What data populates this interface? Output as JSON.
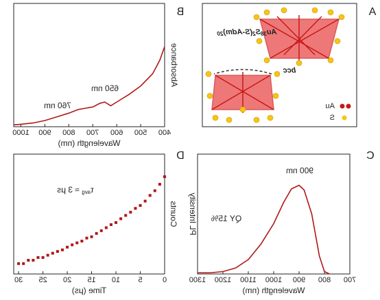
{
  "panel_a": {
    "label": "A",
    "formula_parts": [
      "Au",
      "38",
      "S",
      "2",
      "(S-Adm)",
      "20"
    ],
    "structure": "bcc",
    "legend": [
      "Au",
      "S"
    ]
  },
  "chart_data": [
    {
      "type": "line",
      "panel": "B",
      "x_label": "Wavelength (nm)",
      "y_label": "Absorbance",
      "x": [
        400,
        420,
        450,
        500,
        550,
        600,
        625,
        650,
        670,
        700,
        730,
        760,
        800,
        850,
        900,
        950,
        1000,
        1030
      ],
      "series": [
        {
          "name": "Absorbance",
          "color": "#b01818",
          "values": [
            0.65,
            0.54,
            0.43,
            0.33,
            0.26,
            0.2,
            0.17,
            0.2,
            0.19,
            0.16,
            0.15,
            0.14,
            0.11,
            0.08,
            0.05,
            0.03,
            0.02,
            0.015
          ]
        }
      ],
      "xlim": [
        400,
        1030
      ],
      "ylim": [
        0,
        1
      ],
      "xticks": [
        400,
        500,
        600,
        700,
        800,
        900,
        1000
      ],
      "annotations": [
        "650 nm",
        "760 nm"
      ]
    },
    {
      "type": "line",
      "panel": "C",
      "x_label": "Wavelength (nm)",
      "y_label": "PL Intensity",
      "x": [
        780,
        800,
        820,
        850,
        880,
        900,
        930,
        960,
        1000,
        1050,
        1100,
        1150,
        1200,
        1250,
        1300
      ],
      "series": [
        {
          "name": "PL",
          "color": "#b01818",
          "values": [
            0,
            0.02,
            0.15,
            0.5,
            0.7,
            0.74,
            0.71,
            0.6,
            0.42,
            0.25,
            0.12,
            0.05,
            0.02,
            0.01,
            0.01
          ]
        }
      ],
      "xlim": [
        700,
        1300
      ],
      "ylim": [
        0,
        1
      ],
      "xticks": [
        700,
        800,
        900,
        1000,
        1100,
        1200,
        1300
      ],
      "annotations": [
        "900 nm",
        "QY 15%"
      ]
    },
    {
      "type": "scatter",
      "panel": "D",
      "x_label": "Time (μs)",
      "y_label": "Counts",
      "log_scale": true,
      "x": [
        0,
        1,
        2,
        3,
        4,
        5,
        6,
        7,
        8,
        9,
        10,
        11,
        12,
        13,
        14,
        15,
        16,
        17,
        18,
        19,
        20,
        21,
        22,
        23,
        24,
        25,
        26,
        27,
        28,
        29,
        30
      ],
      "series": [
        {
          "name": "Counts",
          "color": "#b01818",
          "values": [
            665,
            400,
            260,
            190,
            130,
            97,
            80,
            62,
            50,
            40,
            31,
            27,
            22,
            18,
            15,
            12,
            11,
            9,
            8,
            7,
            6,
            5,
            4.5,
            4,
            3.5,
            3,
            3,
            2.5,
            2.5,
            2,
            2
          ]
        }
      ],
      "xlim": [
        0,
        31
      ],
      "ylim": [
        1,
        3000
      ],
      "xticks": [
        0,
        5,
        10,
        15,
        20,
        25,
        30
      ],
      "annotations": [
        [
          "τ",
          "avg",
          " ≈ 3 μs"
        ]
      ]
    }
  ]
}
